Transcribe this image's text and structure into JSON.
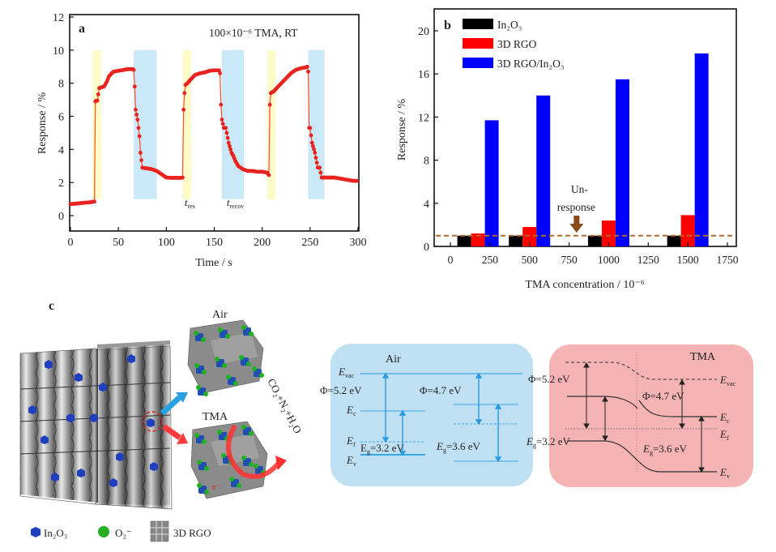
{
  "chart_data": [
    {
      "panel": "a",
      "type": "line",
      "annotation": "100×10⁻⁶ TMA, RT",
      "xlabel": "Time / s",
      "ylabel": "Response / %",
      "xlim": [
        0,
        300
      ],
      "ylim": [
        -1,
        12
      ],
      "xticks": [
        "0",
        "50",
        "100",
        "150",
        "200",
        "250",
        "300"
      ],
      "yticks": [
        "0",
        "2",
        "4",
        "6",
        "8",
        "10",
        "12"
      ],
      "grid": false,
      "series": [
        {
          "name": "Response",
          "color": "#e8231f",
          "x": [
            0,
            5,
            10,
            15,
            20,
            25,
            26,
            27,
            28,
            30,
            32,
            35,
            38,
            40,
            43,
            45,
            50,
            55,
            60,
            65,
            66,
            67,
            68,
            70,
            72,
            73,
            75,
            80,
            85,
            90,
            95,
            100,
            105,
            110,
            115,
            117,
            118,
            119,
            120,
            122,
            125,
            130,
            135,
            140,
            145,
            150,
            155,
            156,
            157,
            158,
            160,
            162,
            165,
            168,
            170,
            172,
            175,
            180,
            185,
            190,
            195,
            200,
            205,
            207,
            208,
            209,
            210,
            212,
            215,
            220,
            225,
            230,
            235,
            240,
            245,
            247,
            248,
            249,
            250,
            252,
            255,
            258,
            260,
            262,
            263,
            265,
            270,
            275,
            280,
            285,
            290,
            295,
            300
          ],
          "y": [
            0.7,
            0.72,
            0.75,
            0.78,
            0.8,
            0.85,
            6.9,
            6.95,
            6.95,
            7.7,
            7.75,
            7.8,
            8.1,
            8.4,
            8.6,
            8.7,
            8.75,
            8.8,
            8.85,
            8.85,
            8.8,
            7.8,
            6.4,
            5.8,
            4.8,
            3.8,
            2.9,
            2.85,
            2.8,
            2.7,
            2.5,
            2.3,
            2.28,
            2.28,
            2.28,
            2.3,
            6.4,
            7.4,
            7.9,
            8.0,
            8.2,
            8.5,
            8.6,
            8.65,
            8.75,
            8.78,
            8.78,
            8.6,
            6.7,
            5.8,
            5.3,
            5.3,
            4.4,
            3.8,
            3.6,
            3.3,
            3.0,
            2.8,
            2.7,
            2.7,
            2.65,
            2.65,
            2.6,
            2.45,
            6.7,
            7.4,
            7.45,
            7.5,
            7.7,
            8.0,
            8.3,
            8.6,
            8.8,
            8.9,
            8.95,
            9.0,
            8.7,
            5.3,
            5.3,
            4.4,
            3.8,
            2.9,
            2.9,
            2.3,
            2.3,
            2.3,
            2.3,
            2.3,
            2.25,
            2.2,
            2.15,
            2.1,
            2.1
          ]
        }
      ],
      "shaded_regions": [
        {
          "kind": "response",
          "color": "#fdfbc8",
          "x0": 23,
          "x1": 32
        },
        {
          "kind": "recovery",
          "color": "#c9e8f8",
          "x0": 66,
          "x1": 90
        },
        {
          "kind": "response",
          "color": "#fdfbc8",
          "x0": 117,
          "x1": 126
        },
        {
          "kind": "recovery",
          "color": "#c9e8f8",
          "x0": 158,
          "x1": 181
        },
        {
          "kind": "response",
          "color": "#fdfbc8",
          "x0": 205,
          "x1": 214
        },
        {
          "kind": "recovery",
          "color": "#c9e8f8",
          "x0": 248,
          "x1": 265
        }
      ],
      "region_ymin": 1,
      "region_ymax": 10,
      "labels": [
        {
          "main": "t",
          "sub": "res",
          "x": 119,
          "y": 0.6
        },
        {
          "main": "t",
          "sub": "recov",
          "x": 163,
          "y": 0.6
        }
      ]
    },
    {
      "panel": "b",
      "type": "bar",
      "xlabel": "TMA concentration / 10⁻⁶",
      "ylabel": "Response / %",
      "xlim": [
        -100,
        1850
      ],
      "ylim": [
        0,
        22
      ],
      "xticks": [
        "0",
        "250",
        "500",
        "750",
        "1000",
        "1250",
        "1500",
        "1750"
      ],
      "xtick_values": [
        0,
        250,
        500,
        750,
        1000,
        1250,
        1500,
        1750
      ],
      "yticks": [
        "0",
        "4",
        "8",
        "12",
        "16",
        "20"
      ],
      "ytick_values": [
        0,
        4,
        8,
        12,
        16,
        20
      ],
      "categories": [
        200,
        500,
        1000,
        1500
      ],
      "series": [
        {
          "name": "In₂O₃",
          "color": "#000000",
          "values": [
            1.0,
            1.0,
            1.0,
            1.0
          ]
        },
        {
          "name": "3D RGO",
          "color": "#ff0000",
          "values": [
            1.2,
            1.8,
            2.4,
            2.9
          ]
        },
        {
          "name": "3D RGO/In₂O₃",
          "color": "#0000ff",
          "values": [
            11.7,
            14.0,
            15.5,
            17.9
          ]
        }
      ],
      "legend": "top-left",
      "threshold": {
        "value": 1.0,
        "color": "#b86a2a",
        "style": "dashed"
      },
      "annotation": {
        "line1": "Un-",
        "line2": "response",
        "x": 800,
        "arrow_color": "#8b4a1a"
      }
    }
  ],
  "panel_labels": {
    "a": "a",
    "b": "b",
    "c": "c"
  },
  "schematic": {
    "air_label": "Air",
    "tma_label": "TMA",
    "products": "CO₂+N₂+H₂O",
    "electron": "e⁻",
    "legend": [
      {
        "icon": "cube-icon",
        "label": "In₂O₃",
        "color": "#1f3fbf"
      },
      {
        "icon": "sphere-icon",
        "label": "O₂⁻",
        "color": "#22b022"
      },
      {
        "icon": "rgo-cube-icon",
        "label": "3D RGO",
        "color": "#777777"
      }
    ]
  },
  "band_air": {
    "title": "Air",
    "evac": "E",
    "evac_sub": "vac",
    "ec": "E",
    "ec_sub": "c",
    "ef": "E",
    "ef_sub": "f",
    "ev": "E",
    "ev_sub": "v",
    "phi1": "Φ=5.2 eV",
    "phi2": "Φ=4.7 eV",
    "eg1": "E",
    "eg1_rest": "=3.2 eV",
    "eg2": "E",
    "eg2_rest": "=3.6 eV",
    "bg_color": "#bfe0f3"
  },
  "band_tma": {
    "title": "TMA",
    "phi1": "Φ=5.2 eV",
    "phi2": "Φ=4.7 eV",
    "eg1": "E",
    "eg1_rest": "=3.2 eV",
    "eg2": "E",
    "eg2_rest": "=3.6 eV",
    "evac_sub": "vac",
    "ec_sub": "c",
    "ef_sub": "f",
    "ev_sub": "v",
    "bg_color": "#f5b3b3"
  }
}
